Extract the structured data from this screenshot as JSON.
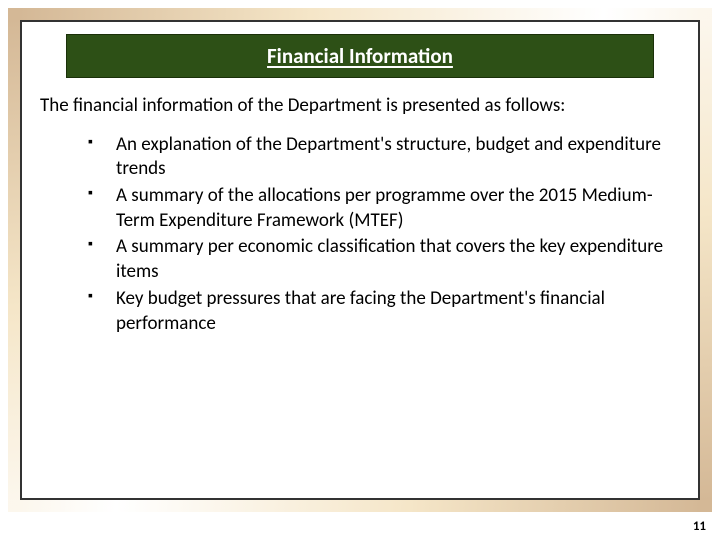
{
  "slide": {
    "title": "Financial  Information",
    "intro": "The financial information of the Department is presented as follows:",
    "bullets": [
      "An explanation of the Department's structure, budget and expenditure trends",
      "A summary of the allocations per programme over the 2015 Medium-Term Expenditure Framework (MTEF)",
      "A summary per economic classification that covers the key expenditure items",
      "Key budget pressures that are facing the Department's financial performance"
    ],
    "page_number": "11"
  },
  "styling": {
    "title_bg": "#2d5016",
    "title_color": "#ffffff",
    "title_fontsize": 21,
    "body_fontsize": 19,
    "body_color": "#000000",
    "frame_gradient": [
      "#d4b896",
      "#f5e6c8",
      "#ffffff",
      "#f5e6c8",
      "#d4b896"
    ],
    "inner_border_color": "#333333",
    "bullet_marker": "▪",
    "page_number_fontsize": 13
  }
}
